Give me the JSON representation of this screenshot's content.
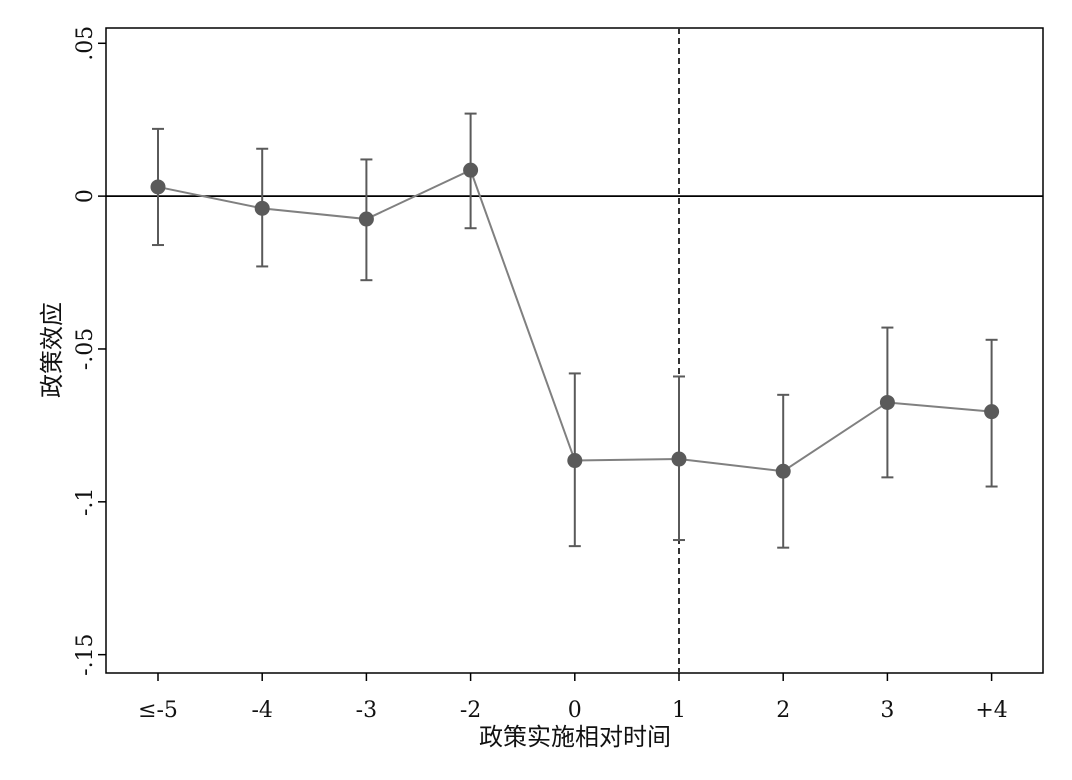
{
  "chart_data": {
    "type": "scatter",
    "xlabel": "政策实施相对时间",
    "ylabel": "政策效应",
    "x_tick_labels": [
      "≤-5",
      "-4",
      "-3",
      "-2",
      "0",
      "1",
      "2",
      "3",
      "+4"
    ],
    "y_tick_labels": [
      "-.15",
      "-.1",
      "-.05",
      "0",
      ".05"
    ],
    "y_ticks": [
      -0.15,
      -0.1,
      -0.05,
      0,
      0.05
    ],
    "ylim": [
      -0.156,
      0.055
    ],
    "reference_line_y": 0,
    "reference_line_x_category": "1",
    "series": [
      {
        "estimates": [
          0.003,
          -0.004,
          -0.0075,
          0.0085,
          -0.0865,
          -0.086,
          -0.09,
          -0.0675,
          -0.0705
        ],
        "ci_low": [
          -0.016,
          -0.023,
          -0.0275,
          -0.0105,
          -0.1145,
          -0.1125,
          -0.115,
          -0.092,
          -0.095
        ],
        "ci_high": [
          0.022,
          0.0155,
          0.012,
          0.027,
          -0.058,
          -0.059,
          -0.065,
          -0.043,
          -0.047
        ]
      }
    ],
    "colors": {
      "series": "#808080",
      "marker": "#5a5a5a",
      "errorbar": "#5a5a5a",
      "axis": "#000000"
    },
    "grid": false
  }
}
